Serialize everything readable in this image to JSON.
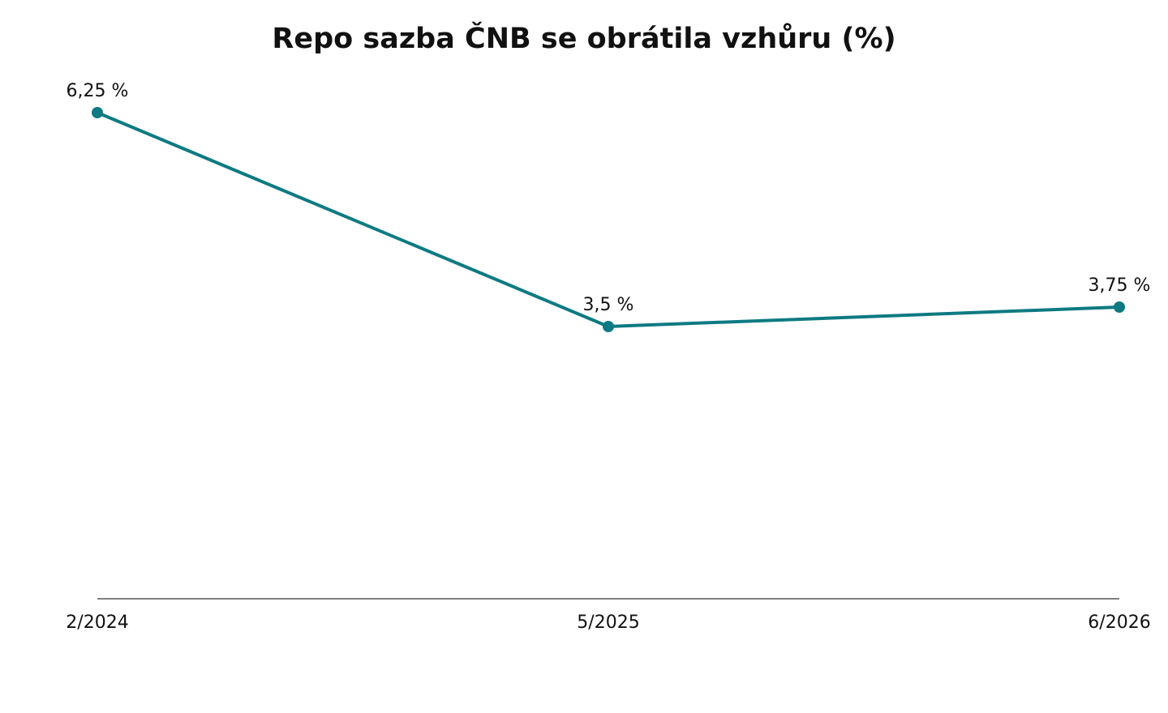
{
  "chart_data": {
    "type": "line",
    "title": "Repo sazba ČNB se obrátila vzhůru (%)",
    "xlabel": "",
    "ylabel": "",
    "categories": [
      "2/2024",
      "5/2025",
      "6/2026"
    ],
    "series": [
      {
        "values": [
          6.25,
          3.5,
          3.75
        ],
        "labels": [
          "6,25 %",
          "3,5 %",
          "3,75 %"
        ],
        "color": "#0d7a82"
      }
    ],
    "ylim": [
      0,
      6.25
    ],
    "grid": false,
    "legend": "none",
    "axis_color": "#555555"
  }
}
